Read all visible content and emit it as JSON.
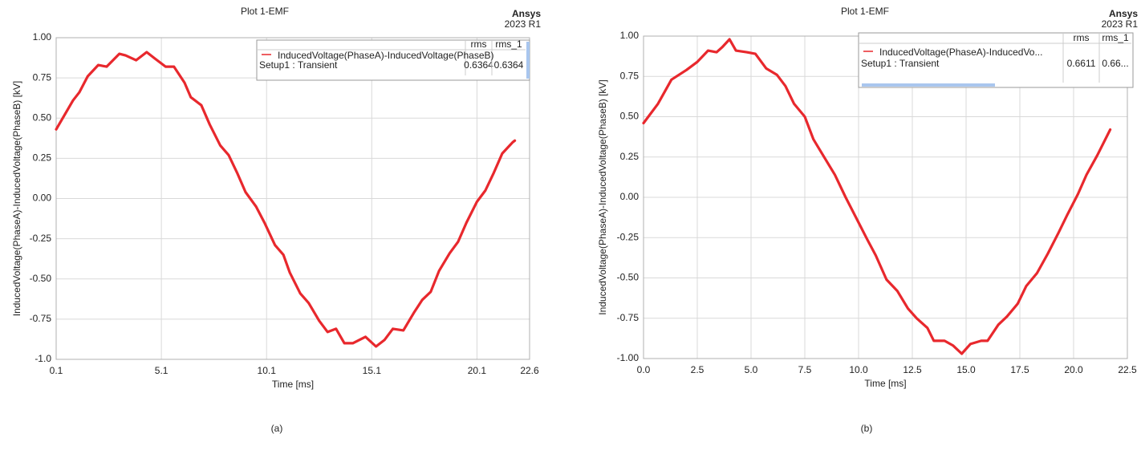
{
  "chart_data": [
    {
      "type": "line",
      "title": "Plot 1-EMF",
      "brand": "Ansys",
      "version": "2023 R1",
      "caption": "(a)",
      "x_label": "Time [ms]",
      "y_label": "InducedVoltage(PhaseA)-InducedVoltage(PhaseB) [kV]",
      "xlim": [
        0.1,
        22.6
      ],
      "xticks": [
        0.1,
        5.1,
        10.1,
        15.1,
        20.1,
        22.6
      ],
      "ylim": [
        -1,
        1
      ],
      "yticks": [
        {
          "value": 1,
          "label": "1.00"
        },
        0.75,
        {
          "value": 0.5,
          "label": "0.50"
        },
        0.25,
        {
          "value": 0,
          "label": "0.00"
        },
        -0.25,
        {
          "value": -0.5,
          "label": "-0.50"
        },
        -0.75,
        {
          "value": -1,
          "label": "-1.0"
        }
      ],
      "grid": true,
      "legend_subtitle": "Setup1 : Transient",
      "legend_columns": [
        "rms",
        "rms_1"
      ],
      "legend_values": [
        0.6364,
        0.6364
      ],
      "x": [
        0.1,
        0.9,
        1.2,
        1.6,
        2.1,
        2.5,
        3.1,
        3.4,
        3.9,
        4.4,
        4.8,
        5.3,
        5.7,
        6.2,
        6.5,
        7.0,
        7.4,
        7.9,
        8.3,
        8.7,
        9.1,
        9.6,
        10.0,
        10.5,
        10.9,
        11.2,
        11.7,
        12.1,
        12.6,
        13.0,
        13.4,
        13.8,
        14.2,
        14.8,
        15.3,
        15.7,
        16.1,
        16.6,
        17.1,
        17.5,
        17.9,
        18.3,
        18.8,
        19.2,
        19.6,
        20.1,
        20.5,
        20.9,
        21.3,
        21.8,
        21.9
      ],
      "series": [
        {
          "name": "InducedVoltage(PhaseA)-InducedVoltage(PhaseB)",
          "color": "#e8282d",
          "values": [
            0.43,
            0.61,
            0.66,
            0.76,
            0.83,
            0.82,
            0.9,
            0.89,
            0.86,
            0.91,
            0.87,
            0.82,
            0.82,
            0.72,
            0.63,
            0.58,
            0.46,
            0.33,
            0.27,
            0.16,
            0.04,
            -0.05,
            -0.15,
            -0.29,
            -0.35,
            -0.46,
            -0.59,
            -0.65,
            -0.76,
            -0.83,
            -0.81,
            -0.9,
            -0.9,
            -0.86,
            -0.92,
            -0.88,
            -0.81,
            -0.82,
            -0.71,
            -0.63,
            -0.58,
            -0.45,
            -0.34,
            -0.27,
            -0.15,
            -0.02,
            0.05,
            0.16,
            0.28,
            0.35,
            0.36
          ]
        }
      ]
    },
    {
      "type": "line",
      "title": "Plot 1-EMF",
      "brand": "Ansys",
      "version": "2023 R1",
      "caption": "(b)",
      "x_label": "Time [ms]",
      "y_label": "InducedVoltage(PhaseA)-InducedVoltage(PhaseB) [kV]",
      "xlim": [
        0,
        22.5
      ],
      "xticks": [
        {
          "value": 0,
          "label": "0.0"
        },
        2.5,
        {
          "value": 5,
          "label": "5.0"
        },
        7.5,
        {
          "value": 10,
          "label": "10.0"
        },
        12.5,
        {
          "value": 15,
          "label": "15.0"
        },
        17.5,
        {
          "value": 20,
          "label": "20.0"
        },
        22.5
      ],
      "ylim": [
        -1,
        1
      ],
      "yticks": [
        {
          "value": 1,
          "label": "1.00"
        },
        0.75,
        {
          "value": 0.5,
          "label": "0.50"
        },
        0.25,
        {
          "value": 0,
          "label": "0.00"
        },
        -0.25,
        {
          "value": -0.5,
          "label": "-0.50"
        },
        -0.75,
        {
          "value": -1,
          "label": "-1.00"
        }
      ],
      "grid": true,
      "legend_subtitle": "Setup1 : Transient",
      "legend_columns": [
        "rms",
        "rms_1"
      ],
      "legend_values": [
        0.6611,
        "0.66..."
      ],
      "x": [
        0,
        0.67,
        1.3,
        2.0,
        2.5,
        3.0,
        3.4,
        3.65,
        4.0,
        4.3,
        4.8,
        5.2,
        5.7,
        6.2,
        6.6,
        7.0,
        7.5,
        7.9,
        8.4,
        8.9,
        9.4,
        9.9,
        10.4,
        10.8,
        11.3,
        11.8,
        12.3,
        12.7,
        13.2,
        13.5,
        14.0,
        14.4,
        14.8,
        15.2,
        15.7,
        16.0,
        16.5,
        16.9,
        17.4,
        17.8,
        18.3,
        18.8,
        19.3,
        19.7,
        20.2,
        20.6,
        21.1,
        21.7
      ],
      "series": [
        {
          "name": "InducedVoltage(PhaseA)-InducedVo...",
          "color": "#e8282d",
          "values": [
            0.46,
            0.58,
            0.73,
            0.79,
            0.84,
            0.91,
            0.9,
            0.93,
            0.98,
            0.91,
            0.9,
            0.89,
            0.8,
            0.76,
            0.69,
            0.58,
            0.5,
            0.36,
            0.25,
            0.14,
            0.0,
            -0.13,
            -0.26,
            -0.36,
            -0.51,
            -0.58,
            -0.69,
            -0.75,
            -0.81,
            -0.89,
            -0.89,
            -0.92,
            -0.97,
            -0.91,
            -0.89,
            -0.89,
            -0.79,
            -0.74,
            -0.66,
            -0.55,
            -0.47,
            -0.35,
            -0.22,
            -0.11,
            0.02,
            0.14,
            0.26,
            0.42
          ]
        }
      ]
    }
  ]
}
